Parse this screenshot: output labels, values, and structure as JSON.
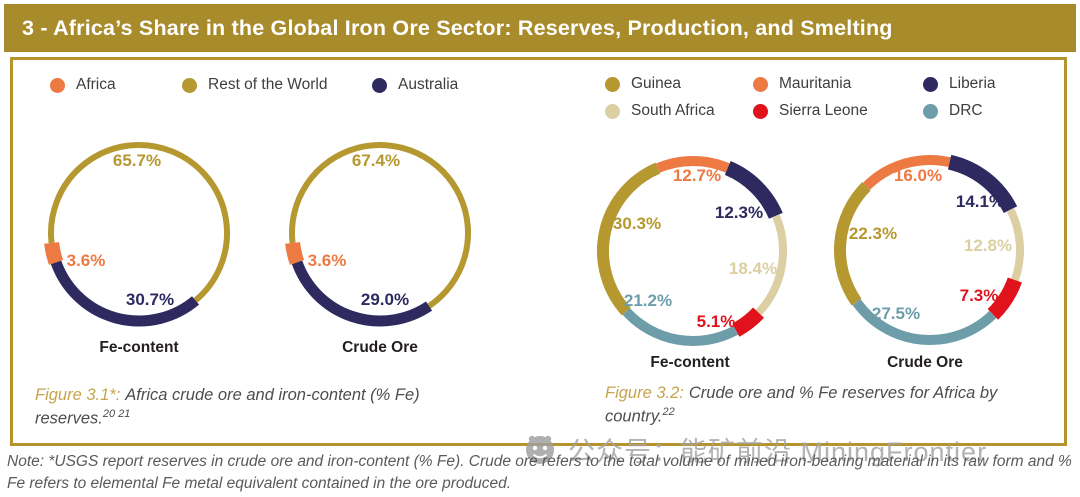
{
  "header": {
    "title": "3 - Africa’s Share in the Global Iron Ore Sector: Reserves, Production, and Smelting"
  },
  "palette": {
    "orange": "#ED7943",
    "gold": "#B5982F",
    "navy": "#2E2A60",
    "beige": "#DBCFA3",
    "red": "#E0131D",
    "teal": "#6E9DAA",
    "bar_gold": "#A88B2A",
    "border_gold": "#B5942F",
    "caption_gold": "#C5A44C",
    "text_dark": "#3E3E3D",
    "note_gray": "#595A5C",
    "watermark_gray": "#A3A3A3"
  },
  "legend_africa": {
    "items": [
      {
        "label": "Africa",
        "color": "orange"
      },
      {
        "label": "Rest of the World",
        "color": "gold"
      },
      {
        "label": "Australia",
        "color": "navy"
      }
    ]
  },
  "legend_country": {
    "items": [
      {
        "label": "Guinea",
        "color": "gold"
      },
      {
        "label": "Mauritania",
        "color": "orange"
      },
      {
        "label": "Liberia",
        "color": "navy"
      },
      {
        "label": "South Africa",
        "color": "beige"
      },
      {
        "label": "Sierra Leone",
        "color": "red"
      },
      {
        "label": "DRC",
        "color": "teal"
      }
    ]
  },
  "chart_data": [
    {
      "id": "fe-africa",
      "type": "donut",
      "title": "Fe-content",
      "start_angle": -96.5,
      "segments": [
        {
          "label": "Rest of the World",
          "value": 65.7,
          "display": "65.7%",
          "color": "gold"
        },
        {
          "label": "Australia",
          "value": 30.7,
          "display": "30.7%",
          "color": "navy"
        },
        {
          "label": "Africa",
          "value": 3.6,
          "display": "3.6%",
          "color": "orange"
        }
      ]
    },
    {
      "id": "crude-africa",
      "type": "donut",
      "title": "Crude Ore",
      "start_angle": -96.5,
      "segments": [
        {
          "label": "Rest of the World",
          "value": 67.4,
          "display": "67.4%",
          "color": "gold"
        },
        {
          "label": "Australia",
          "value": 29.0,
          "display": "29.0%",
          "color": "navy"
        },
        {
          "label": "Africa",
          "value": 3.6,
          "display": "3.6%",
          "color": "orange"
        }
      ]
    },
    {
      "id": "fe-country",
      "type": "donut",
      "title": "Fe-content",
      "start_angle": -23,
      "segments": [
        {
          "label": "Mauritania",
          "value": 12.7,
          "display": "12.7%",
          "color": "orange"
        },
        {
          "label": "Liberia",
          "value": 12.3,
          "display": "12.3%",
          "color": "navy"
        },
        {
          "label": "South Africa",
          "value": 18.4,
          "display": "18.4%",
          "color": "beige"
        },
        {
          "label": "Sierra Leone",
          "value": 5.1,
          "display": "5.1%",
          "color": "red"
        },
        {
          "label": "DRC",
          "value": 21.2,
          "display": "21.2%",
          "color": "teal"
        },
        {
          "label": "Guinea",
          "value": 30.3,
          "display": "30.3%",
          "color": "gold"
        }
      ]
    },
    {
      "id": "crude-country",
      "type": "donut",
      "title": "Crude Ore",
      "start_angle": -45,
      "segments": [
        {
          "label": "Mauritania",
          "value": 16.0,
          "display": "16.0%",
          "color": "orange"
        },
        {
          "label": "Liberia",
          "value": 14.1,
          "display": "14.1%",
          "color": "navy"
        },
        {
          "label": "South Africa",
          "value": 12.8,
          "display": "12.8%",
          "color": "beige"
        },
        {
          "label": "Sierra Leone",
          "value": 7.3,
          "display": "7.3%",
          "color": "red"
        },
        {
          "label": "DRC",
          "value": 27.5,
          "display": "27.5%",
          "color": "teal"
        },
        {
          "label": "Guinea",
          "value": 22.3,
          "display": "22.3%",
          "color": "gold"
        }
      ]
    }
  ],
  "captions": {
    "fig31": {
      "prefix": "Figure 3.1*:",
      "text": "Africa crude ore and iron-content (% Fe) reserves.",
      "superscript": "20 21"
    },
    "fig32": {
      "prefix": "Figure 3.2:",
      "text": "Crude ore and % Fe reserves for Africa by country.",
      "superscript": "22"
    }
  },
  "watermark": {
    "text": "公众号：能矿前沿 MiningFrontier"
  },
  "note": {
    "text": "Note: *USGS report reserves in crude ore and iron-content (% Fe). Crude ore refers to the total volume of mined iron-bearing material in its raw form and % Fe refers to elemental Fe metal equivalent contained in the ore produced."
  }
}
